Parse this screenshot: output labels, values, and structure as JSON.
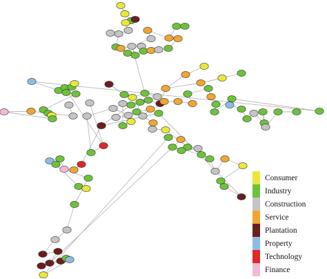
{
  "legend": {
    "items": [
      {
        "label": "Consumer",
        "color": "#e8e83a"
      },
      {
        "label": "Industry",
        "color": "#6dc23a"
      },
      {
        "label": "Construction",
        "color": "#c4c4c4"
      },
      {
        "label": "Service",
        "color": "#f0a630"
      },
      {
        "label": "Plantation",
        "color": "#6b1e1e"
      },
      {
        "label": "Property",
        "color": "#8fbce6"
      },
      {
        "label": "Technology",
        "color": "#e02828"
      },
      {
        "label": "Finance",
        "color": "#f4b8d8"
      }
    ]
  }
}
